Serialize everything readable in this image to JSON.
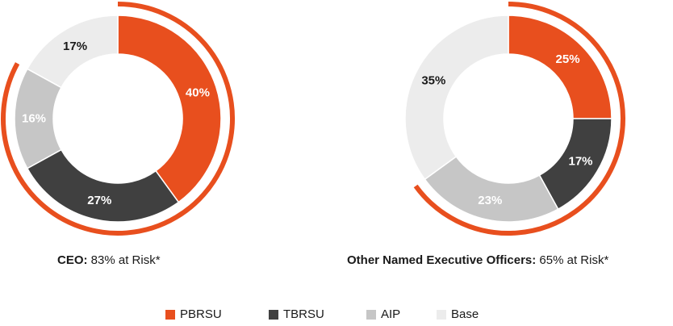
{
  "colors": {
    "PBRSU": "#e84f1e",
    "TBRSU": "#404040",
    "AIP": "#c6c6c6",
    "Base": "#ececec",
    "risk_arc": "#e84f1e"
  },
  "legend": [
    "PBRSU",
    "TBRSU",
    "AIP",
    "Base"
  ],
  "captions": {
    "ceo": {
      "label": "CEO:",
      "text": " 83% at Risk*"
    },
    "neo": {
      "label": "Other Named Executive Officers:",
      "text": " 65% at Risk*"
    }
  },
  "chart_data": [
    {
      "type": "pie",
      "variant": "donut",
      "title": "CEO: 83% at Risk*",
      "at_risk_percent": 83,
      "categories": [
        "PBRSU",
        "TBRSU",
        "AIP",
        "Base"
      ],
      "values": [
        40,
        27,
        16,
        17
      ],
      "labels": [
        "40%",
        "27%",
        "16%",
        "17%"
      ]
    },
    {
      "type": "pie",
      "variant": "donut",
      "title": "Other Named Executive Officers: 65% at Risk*",
      "at_risk_percent": 65,
      "categories": [
        "PBRSU",
        "TBRSU",
        "AIP",
        "Base"
      ],
      "values": [
        25,
        17,
        23,
        35
      ],
      "labels": [
        "25%",
        "17%",
        "23%",
        "35%"
      ]
    }
  ]
}
